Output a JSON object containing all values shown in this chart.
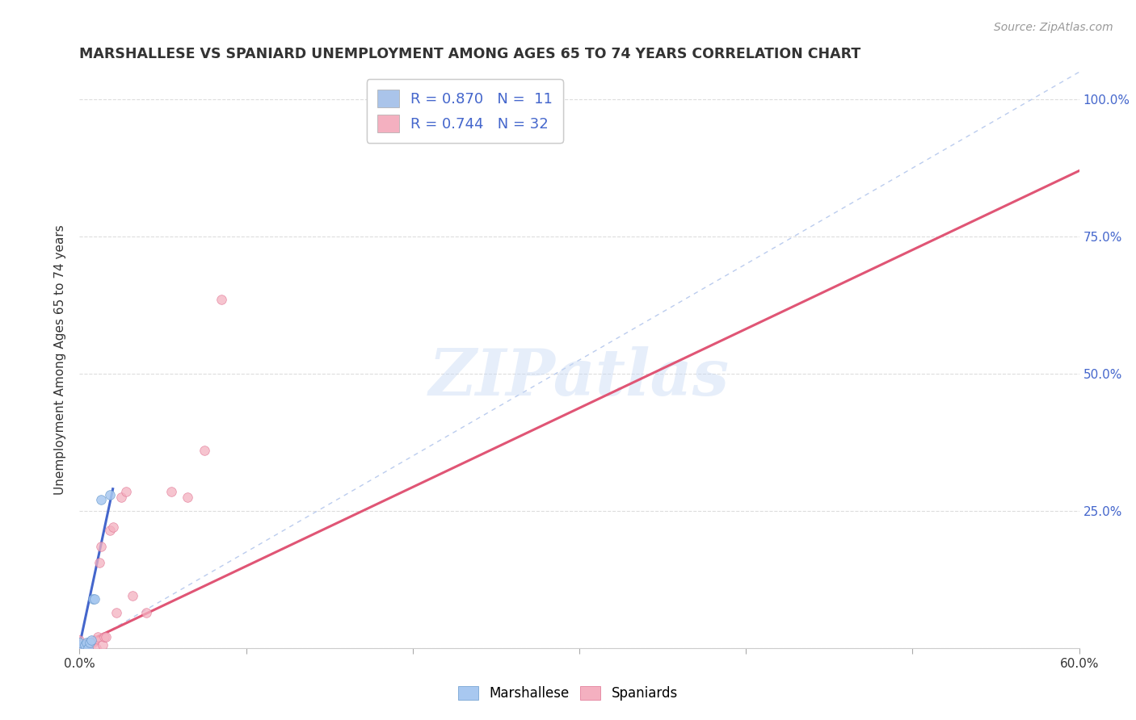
{
  "title": "MARSHALLESE VS SPANIARD UNEMPLOYMENT AMONG AGES 65 TO 74 YEARS CORRELATION CHART",
  "source": "Source: ZipAtlas.com",
  "ylabel": "Unemployment Among Ages 65 to 74 years",
  "xlim": [
    0.0,
    0.6
  ],
  "ylim": [
    0.0,
    1.05
  ],
  "x_tick_vals": [
    0.0,
    0.1,
    0.2,
    0.3,
    0.4,
    0.5,
    0.6
  ],
  "x_tick_labels": [
    "0.0%",
    "",
    "",
    "",
    "",
    "",
    "60.0%"
  ],
  "y_tick_vals": [
    0.0,
    0.25,
    0.5,
    0.75,
    1.0
  ],
  "y_tick_labels_right": [
    "",
    "25.0%",
    "50.0%",
    "75.0%",
    "100.0%"
  ],
  "legend_top": [
    {
      "label_r": "R = 0.870",
      "label_n": "N =  11",
      "color": "#aac4ea"
    },
    {
      "label_r": "R = 0.744",
      "label_n": "N = 32",
      "color": "#f4b0c0"
    }
  ],
  "marshallese_scatter": {
    "x": [
      0.0,
      0.0,
      0.003,
      0.004,
      0.005,
      0.006,
      0.007,
      0.008,
      0.009,
      0.013,
      0.018
    ],
    "y": [
      0.005,
      0.01,
      0.005,
      0.01,
      0.0,
      0.01,
      0.015,
      0.09,
      0.09,
      0.27,
      0.28
    ],
    "color": "#a8c8f0",
    "edgecolor": "#6699cc",
    "size": 70,
    "alpha": 0.85
  },
  "spaniard_scatter": {
    "x": [
      0.0,
      0.0,
      0.0,
      0.0,
      0.0,
      0.002,
      0.003,
      0.004,
      0.005,
      0.005,
      0.006,
      0.007,
      0.008,
      0.009,
      0.01,
      0.011,
      0.012,
      0.013,
      0.014,
      0.015,
      0.016,
      0.018,
      0.02,
      0.022,
      0.025,
      0.028,
      0.032,
      0.04,
      0.055,
      0.065,
      0.075,
      0.085
    ],
    "y": [
      0.0,
      0.0,
      0.005,
      0.01,
      0.015,
      0.0,
      0.005,
      0.005,
      0.0,
      0.01,
      0.01,
      0.01,
      0.01,
      0.015,
      0.0,
      0.02,
      0.155,
      0.185,
      0.005,
      0.02,
      0.02,
      0.215,
      0.22,
      0.065,
      0.275,
      0.285,
      0.095,
      0.065,
      0.285,
      0.275,
      0.36,
      0.635
    ],
    "color": "#f4b0c0",
    "edgecolor": "#e07090",
    "size": 70,
    "alpha": 0.75
  },
  "marshallese_regression": {
    "x": [
      0.0,
      0.02
    ],
    "y": [
      0.005,
      0.29
    ],
    "color": "#4466cc",
    "linewidth": 2.2,
    "linestyle": "solid"
  },
  "spaniard_regression": {
    "x": [
      0.0,
      0.6
    ],
    "y": [
      0.005,
      0.87
    ],
    "color": "#e05575",
    "linewidth": 2.2,
    "linestyle": "solid"
  },
  "diagonal_line": {
    "x": [
      0.0,
      0.6
    ],
    "y": [
      0.0,
      1.05
    ],
    "color": "#bbccee",
    "linewidth": 1.0,
    "linestyle": "dashed"
  },
  "watermark_text": "ZIPatlas",
  "background_color": "#ffffff",
  "grid_color": "#dddddd"
}
